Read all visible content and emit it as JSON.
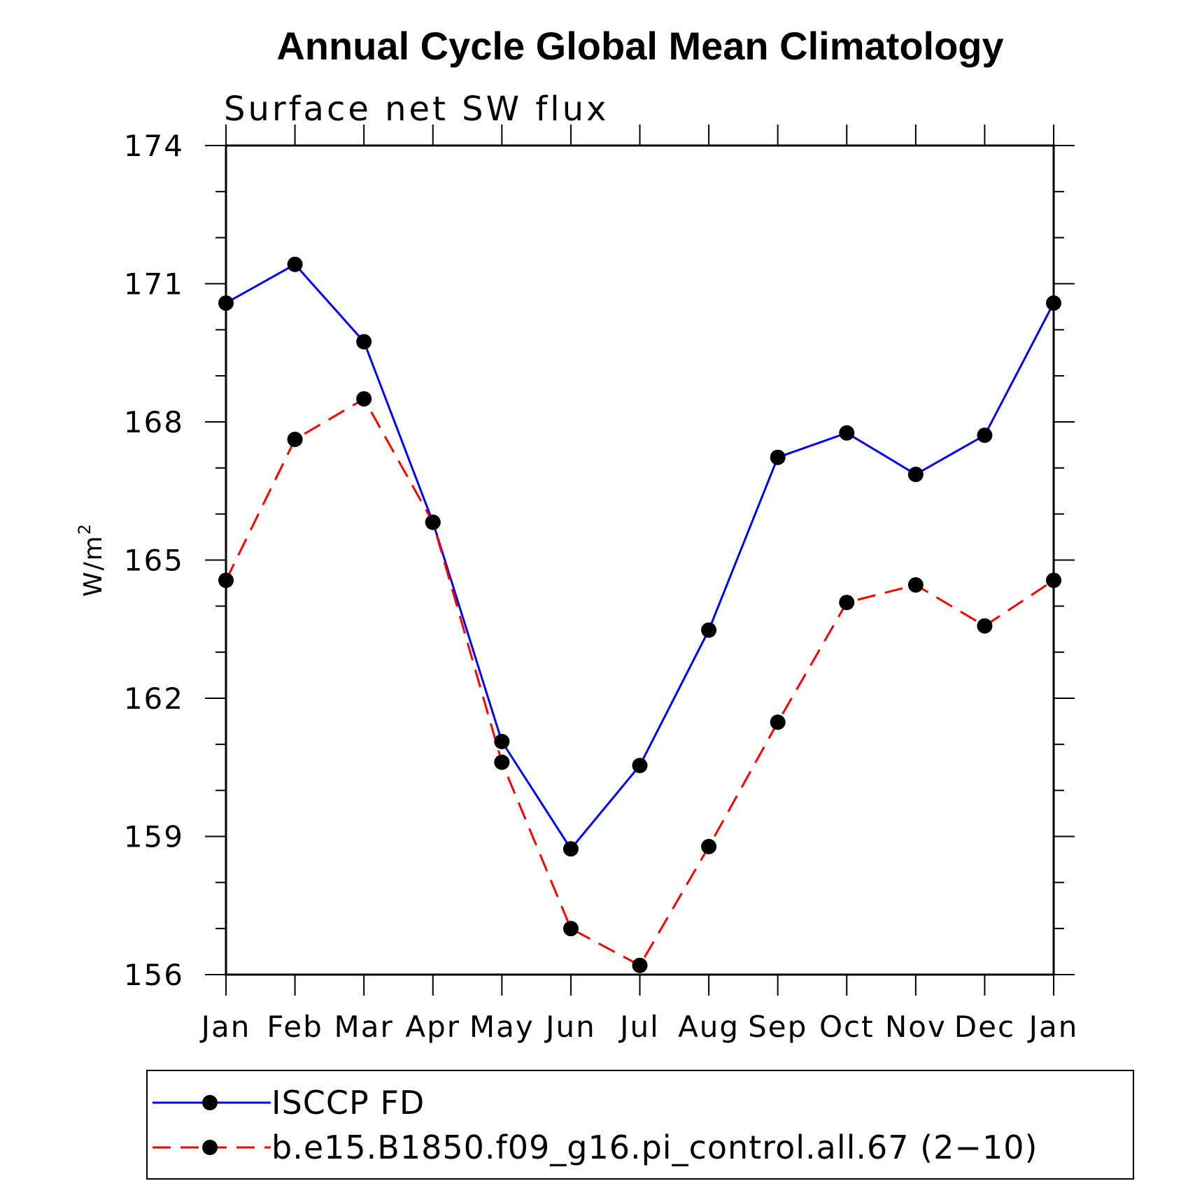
{
  "chart_data": {
    "type": "line",
    "title": "Annual Cycle Global Mean Climatology",
    "subtitle": "Surface net SW flux",
    "ylabel": "W/m",
    "ylabel_superscript": "2",
    "ylim": [
      156,
      174
    ],
    "yticks": [
      "156",
      "159",
      "162",
      "165",
      "168",
      "171",
      "174"
    ],
    "categories": [
      "Jan",
      "Feb",
      "Mar",
      "Apr",
      "May",
      "Jun",
      "Jul",
      "Aug",
      "Sep",
      "Oct",
      "Nov",
      "Dec",
      "Jan"
    ],
    "grid": false,
    "legend_position": "bottom",
    "series": [
      {
        "name": "ISCCP FD",
        "color": "#0000ff",
        "dash": "solid",
        "values": [
          170.58,
          171.42,
          169.74,
          165.82,
          161.06,
          158.73,
          160.54,
          163.48,
          167.23,
          167.76,
          166.86,
          167.71,
          170.58
        ]
      },
      {
        "name": "b.e15.B1850.f09_g16.pi_control.all.67 (2−10)",
        "color": "#ff0000",
        "dash": "dashed",
        "values": [
          164.56,
          167.62,
          168.5,
          165.82,
          160.61,
          157.0,
          156.2,
          158.78,
          161.48,
          164.08,
          164.46,
          163.57,
          164.56
        ]
      }
    ]
  }
}
